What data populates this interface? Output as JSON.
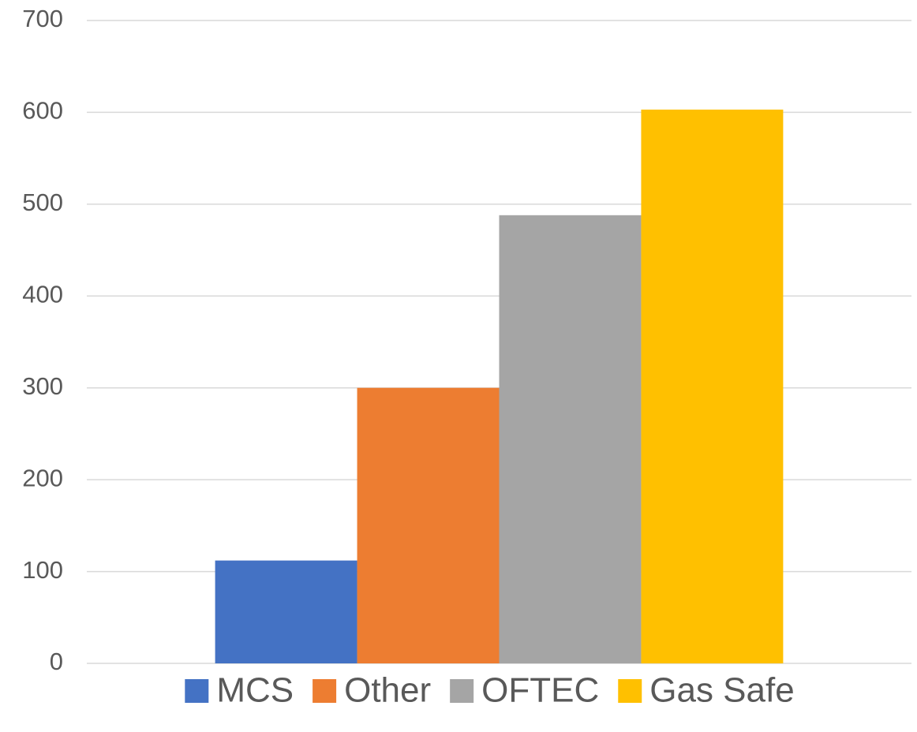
{
  "chart_data": {
    "type": "bar",
    "categories": [
      null
    ],
    "series": [
      {
        "name": "MCS",
        "color": "#4472c4",
        "values": [
          112
        ]
      },
      {
        "name": "Other",
        "color": "#ed7d31",
        "values": [
          300
        ]
      },
      {
        "name": "OFTEC",
        "color": "#a5a5a5",
        "values": [
          488
        ]
      },
      {
        "name": "Gas Safe",
        "color": "#ffc000",
        "values": [
          603
        ]
      }
    ],
    "ylim": [
      0,
      700
    ],
    "yticks": [
      0,
      100,
      200,
      300,
      400,
      500,
      600,
      700
    ],
    "grid": true,
    "legend": "bottom"
  }
}
